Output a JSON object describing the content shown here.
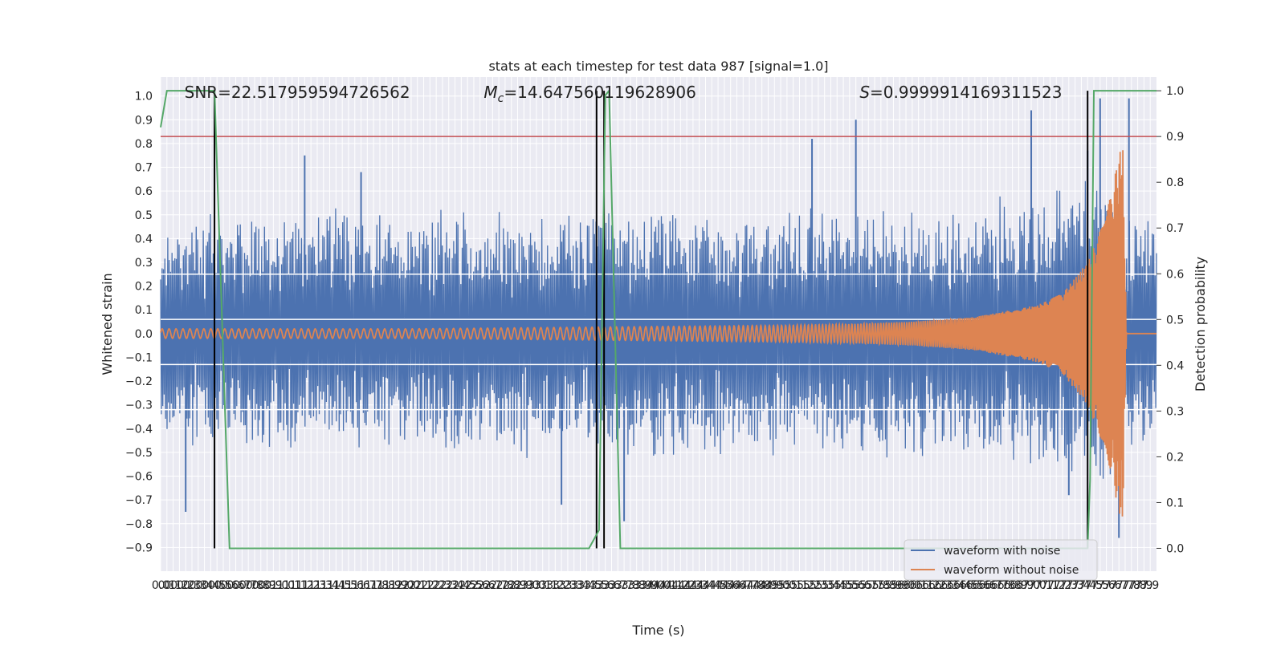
{
  "chart_data": {
    "type": "line",
    "title": "stats at each timestep for test data 987 [signal=1.0]",
    "xlabel": "Time (s)",
    "ylabel": "Whitened strain",
    "y2label": "Detection probability",
    "xlim": [
      0.0,
      7.95
    ],
    "ylim": [
      -1.0,
      1.08
    ],
    "y2lim": [
      -0.05,
      1.03
    ],
    "grid": true,
    "legend_position": "lower right",
    "x_ticks": [
      0.0,
      0.05,
      0.1,
      0.15,
      0.2,
      0.25,
      0.3,
      0.35,
      0.4,
      0.45,
      0.5,
      0.55,
      0.6,
      0.65,
      0.7,
      0.75,
      0.8,
      0.85,
      0.9,
      0.95,
      1.0,
      1.05,
      1.1,
      1.15,
      1.2,
      1.25,
      1.3,
      1.35,
      1.4,
      1.45,
      1.5,
      1.55,
      1.6,
      1.65,
      1.7,
      1.75,
      1.8,
      1.85,
      1.9,
      1.95,
      2.0,
      2.05,
      2.1,
      2.15,
      2.2,
      2.25,
      2.3,
      2.35,
      2.4,
      2.45,
      2.5,
      2.55,
      2.6,
      2.65,
      2.7,
      2.75,
      2.8,
      2.85,
      2.9,
      2.95,
      3.0,
      3.05,
      3.1,
      3.15,
      3.2,
      3.25,
      3.3,
      3.35,
      3.4,
      3.45,
      3.5,
      3.55,
      3.6,
      3.65,
      3.7,
      3.75,
      3.8,
      3.85,
      3.9,
      3.95,
      4.0,
      4.05,
      4.1,
      4.15,
      4.2,
      4.25,
      4.3,
      4.35,
      4.4,
      4.45,
      4.5,
      4.55,
      4.6,
      4.65,
      4.7,
      4.75,
      4.8,
      4.85,
      4.9,
      4.95,
      5.0,
      5.05,
      5.1,
      5.15,
      5.2,
      5.25,
      5.3,
      5.35,
      5.4,
      5.45,
      5.5,
      5.55,
      5.6,
      5.65,
      5.7,
      5.75,
      5.8,
      5.85,
      5.9,
      5.95,
      6.0,
      6.05,
      6.1,
      6.15,
      6.2,
      6.25,
      6.3,
      6.35,
      6.4,
      6.45,
      6.5,
      6.55,
      6.6,
      6.65,
      6.7,
      6.75,
      6.8,
      6.85,
      6.9,
      6.95,
      7.0,
      7.05,
      7.1,
      7.15,
      7.2,
      7.25,
      7.3,
      7.35,
      7.4,
      7.45,
      7.5,
      7.55,
      7.6,
      7.65,
      7.7,
      7.75,
      7.8,
      7.85,
      7.9
    ],
    "y_ticks": [
      1.0,
      0.9,
      0.8,
      0.7,
      0.6,
      0.5,
      0.4,
      0.3,
      0.2,
      0.1,
      0.0,
      -0.1,
      -0.2,
      -0.3,
      -0.4,
      -0.5,
      -0.6,
      -0.7,
      -0.8,
      -0.9
    ],
    "y_tick_labels": [
      "1.0",
      "0.9",
      "0.8",
      "0.7",
      "0.6",
      "0.5",
      "0.4",
      "0.3",
      "0.2",
      "0.1",
      "0.0",
      "−0.1",
      "−0.2",
      "−0.3",
      "−0.4",
      "−0.5",
      "−0.6",
      "−0.7",
      "−0.8",
      "−0.9"
    ],
    "y2_ticks": [
      1.0,
      0.9,
      0.8,
      0.7,
      0.6,
      0.5,
      0.4,
      0.3,
      0.2,
      0.1,
      0.0
    ],
    "y2_tick_labels": [
      "1.0",
      "0.9",
      "0.8",
      "0.7",
      "0.6",
      "0.5",
      "0.4",
      "0.3",
      "0.2",
      "0.1",
      "0.0"
    ],
    "annotations": [
      {
        "text": "SNR=22.517959594726562",
        "x": 0.19
      },
      {
        "math": "M",
        "sub": "c",
        "text": "=14.647560119628906",
        "x": 2.58
      },
      {
        "math": "S",
        "text": "=0.9999914169311523",
        "x": 5.58
      }
    ],
    "series": [
      {
        "name": "waveform with noise",
        "color": "#4C72B0",
        "axis": "left",
        "description": "noise envelope",
        "envelope_x": [
          0.0,
          0.5,
          1.0,
          2.0,
          3.0,
          4.0,
          5.0,
          5.5,
          6.0,
          6.5,
          7.0,
          7.2,
          7.4,
          7.55,
          7.7,
          7.95
        ],
        "envelope_upper": [
          0.42,
          0.45,
          0.47,
          0.47,
          0.46,
          0.46,
          0.46,
          0.47,
          0.48,
          0.5,
          0.53,
          0.55,
          0.6,
          0.65,
          0.5,
          0.45
        ],
        "envelope_lower": [
          -0.42,
          -0.44,
          -0.45,
          -0.46,
          -0.46,
          -0.46,
          -0.47,
          -0.47,
          -0.48,
          -0.49,
          -0.52,
          -0.55,
          -0.6,
          -0.65,
          -0.5,
          -0.45
        ],
        "peaks": [
          [
            0.2,
            -0.75
          ],
          [
            1.15,
            0.75
          ],
          [
            1.6,
            0.68
          ],
          [
            3.2,
            -0.72
          ],
          [
            3.7,
            -0.79
          ],
          [
            5.2,
            0.82
          ],
          [
            5.55,
            0.9
          ],
          [
            6.95,
            0.94
          ],
          [
            7.25,
            -0.68
          ],
          [
            7.4,
            0.77
          ],
          [
            7.5,
            0.99
          ],
          [
            7.65,
            -0.86
          ],
          [
            7.73,
            0.99
          ]
        ]
      },
      {
        "name": "waveform without noise",
        "color": "#DD8452",
        "axis": "left",
        "description": "chirp",
        "x": [
          0.0,
          1.0,
          2.0,
          3.0,
          4.0,
          5.0,
          5.5,
          6.0,
          6.5,
          7.0,
          7.2,
          7.4,
          7.55,
          7.63,
          7.68,
          7.71,
          7.95
        ],
        "amplitude": [
          0.02,
          0.02,
          0.02,
          0.025,
          0.03,
          0.035,
          0.04,
          0.05,
          0.07,
          0.12,
          0.17,
          0.3,
          0.5,
          0.7,
          0.82,
          0.0,
          0.0
        ]
      },
      {
        "name": "Detection probability",
        "color": "#55A868",
        "axis": "right",
        "x": [
          0.0,
          0.05,
          0.15,
          0.43,
          0.55,
          3.42,
          3.5,
          3.55,
          3.58,
          3.67,
          7.4,
          7.42,
          7.45,
          7.95
        ],
        "values": [
          0.92,
          1.0,
          1.0,
          1.0,
          0.0,
          0.0,
          0.04,
          0.99,
          1.0,
          0.0,
          0.0,
          0.15,
          1.0,
          1.0
        ]
      }
    ],
    "threshold": {
      "color": "#C44E52",
      "value": 0.9
    },
    "event_markers": {
      "color": "#000000",
      "x": [
        0.43,
        3.48,
        3.54,
        7.4
      ]
    },
    "h_guides": {
      "color": "#ffffff",
      "values": [
        0.25,
        0.06,
        -0.13,
        -0.32
      ]
    },
    "legend": [
      "waveform with noise",
      "waveform without noise"
    ]
  }
}
